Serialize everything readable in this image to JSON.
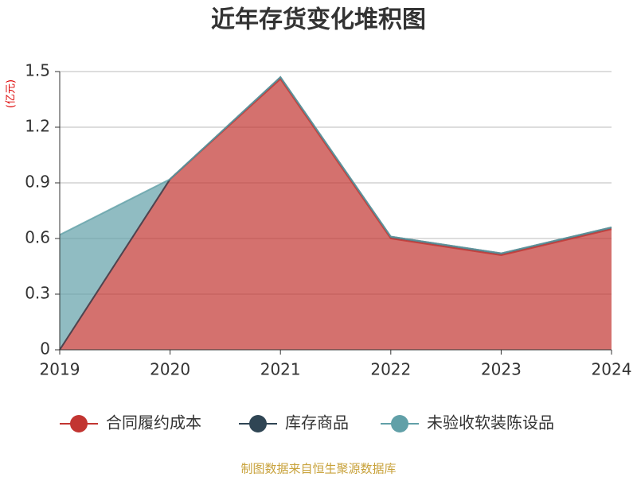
{
  "chart_data": {
    "type": "stacked-area",
    "title": "近年存货变化堆积图",
    "y_unit": "(亿元)",
    "source": "制图数据来自恒生聚源数据库",
    "categories": [
      "2019",
      "2020",
      "2021",
      "2022",
      "2023",
      "2024"
    ],
    "series": [
      {
        "name": "合同履约成本",
        "color": "#c23531",
        "values": [
          0,
          0.92,
          1.46,
          0.6,
          0.51,
          0.65
        ]
      },
      {
        "name": "库存商品",
        "color": "#2f4554",
        "values": [
          0,
          0,
          0.01,
          0.01,
          0.01,
          0.01
        ]
      },
      {
        "name": "未验收软装陈设品",
        "color": "#61a0a8",
        "values": [
          0.62,
          0,
          0,
          0,
          0,
          0
        ]
      }
    ],
    "ylim": [
      0,
      1.5
    ],
    "yticks": [
      0,
      0.3,
      0.6,
      0.9,
      1.2,
      1.5
    ],
    "grid": true
  }
}
